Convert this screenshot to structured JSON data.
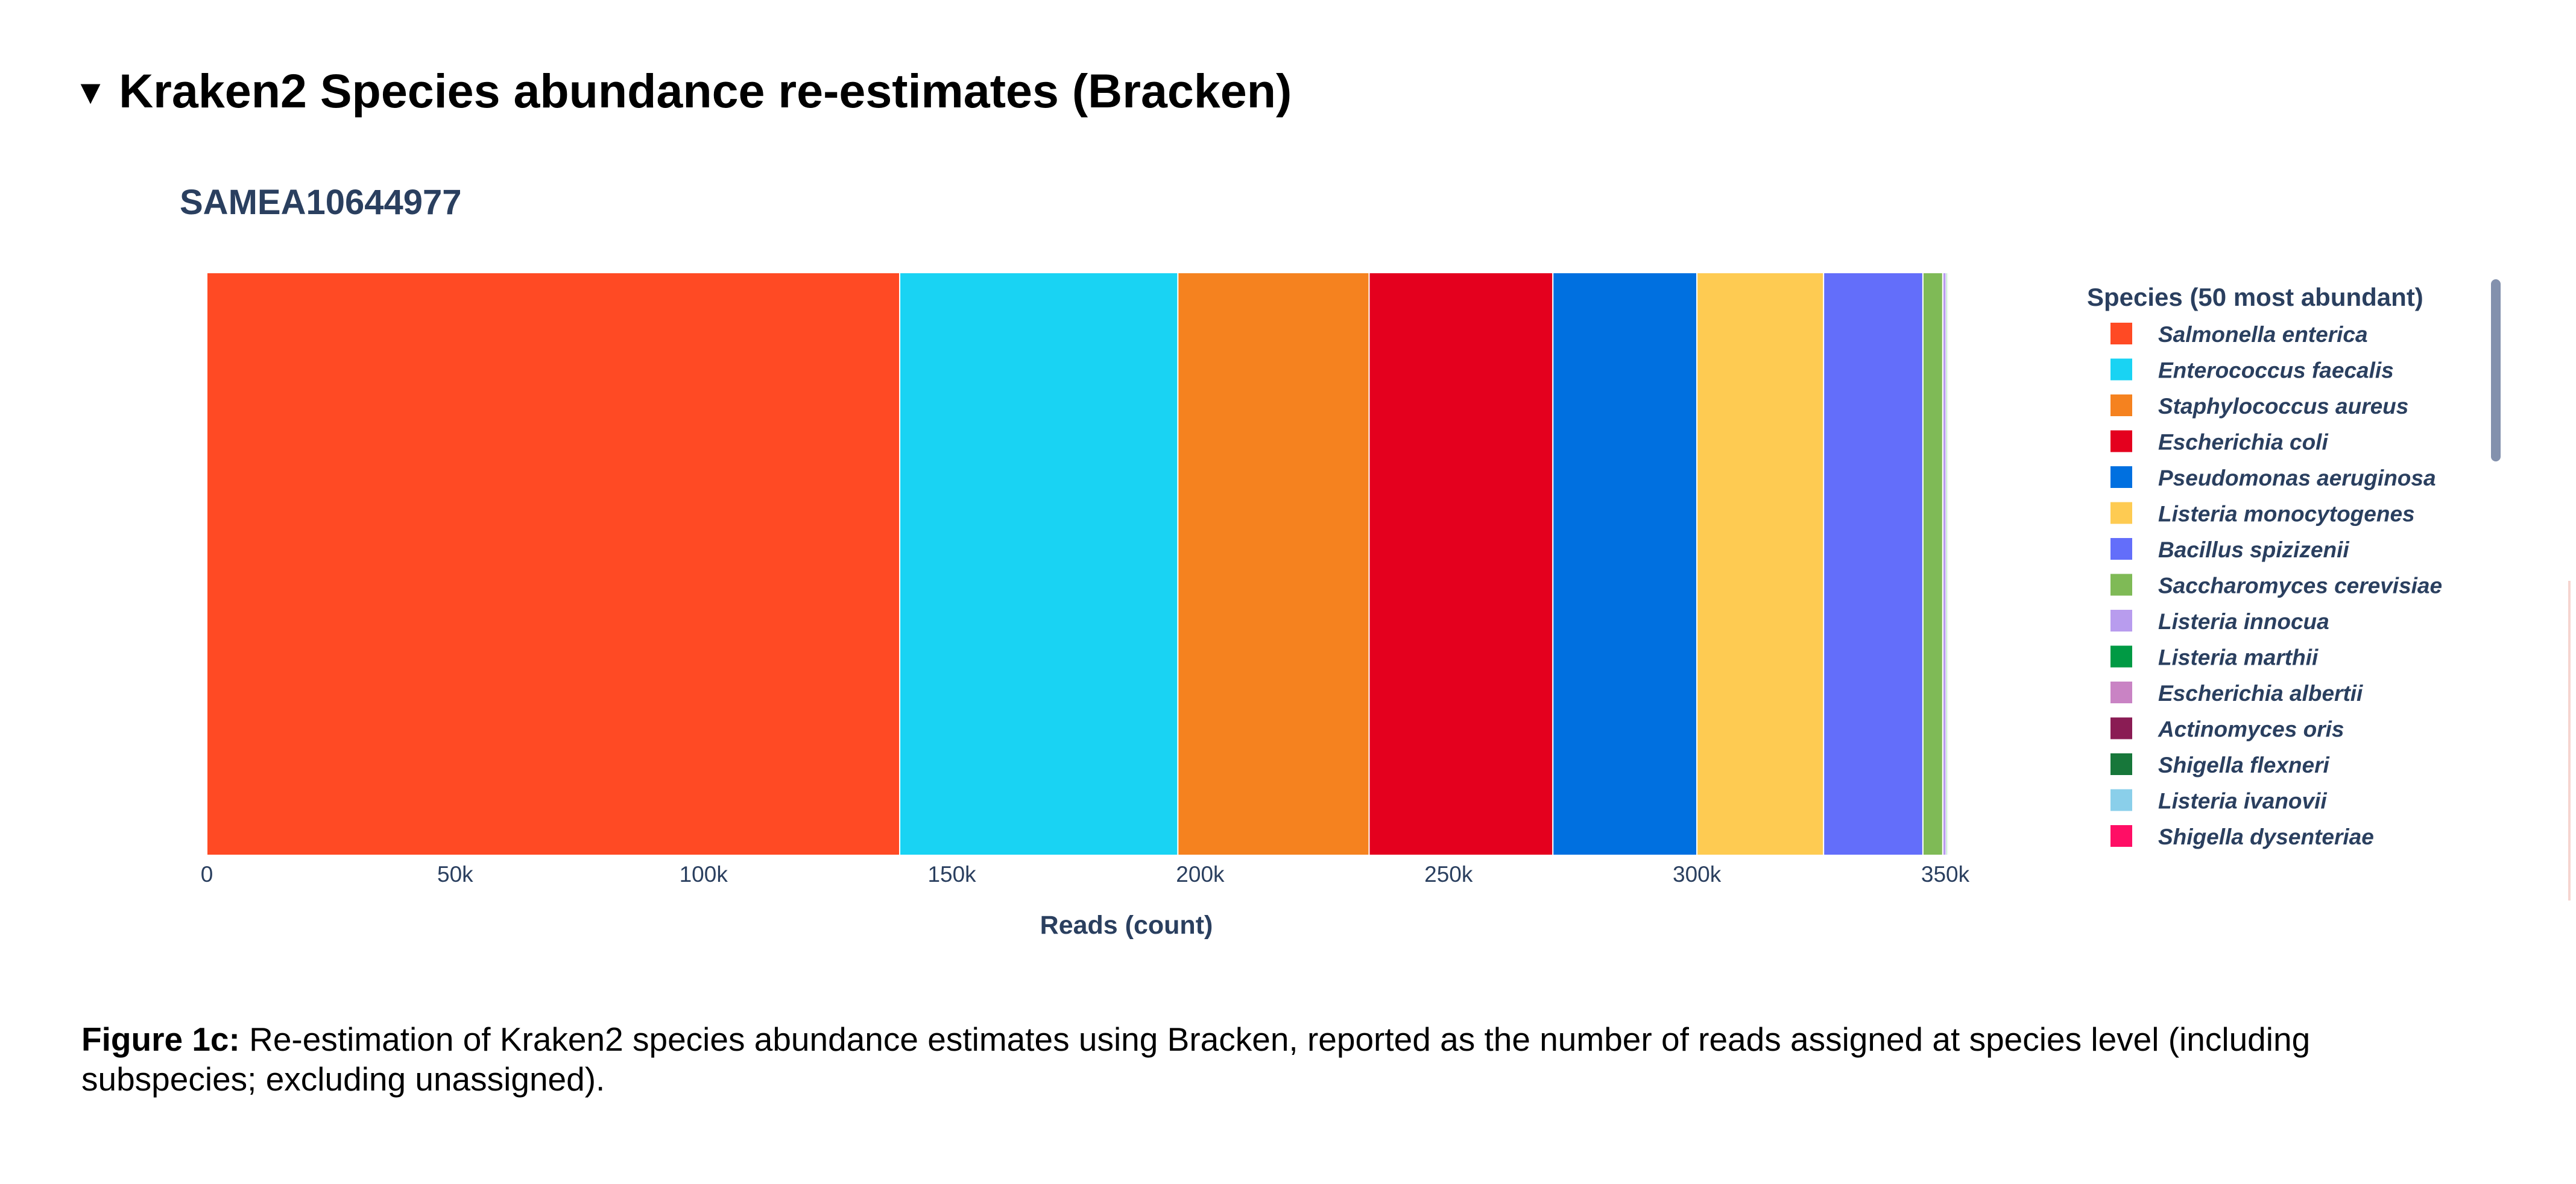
{
  "section": {
    "toggle_icon": "▾",
    "title": "Kraken2 Species abundance re-estimates (Bracken)"
  },
  "chart_data": {
    "type": "bar",
    "orientation": "horizontal",
    "barmode": "stack",
    "title": "SAMEA10644977",
    "xlabel": "Reads (count)",
    "ylabel": "",
    "xlim": [
      0,
      350000
    ],
    "xticks": [
      0,
      50000,
      100000,
      150000,
      200000,
      250000,
      300000,
      350000
    ],
    "xtick_labels": [
      "0",
      "50k",
      "100k",
      "150k",
      "200k",
      "250k",
      "300k",
      "350k"
    ],
    "categories": [
      "SAMEA10644977"
    ],
    "legend_title": "Species (50 most abundant)",
    "legend_position": "right",
    "series": [
      {
        "name": "Salmonella enterica",
        "values": [
          139500
        ],
        "color": "#FF4A24"
      },
      {
        "name": "Enterococcus faecalis",
        "values": [
          56000
        ],
        "color": "#19D3F3"
      },
      {
        "name": "Staphylococcus aureus",
        "values": [
          38500
        ],
        "color": "#F5821F"
      },
      {
        "name": "Escherichia coli",
        "values": [
          37000
        ],
        "color": "#E4001E"
      },
      {
        "name": "Pseudomonas aeruginosa",
        "values": [
          29000
        ],
        "color": "#0070E0"
      },
      {
        "name": "Listeria monocytogenes",
        "values": [
          25500
        ],
        "color": "#FECB52"
      },
      {
        "name": "Bacillus spizizenii",
        "values": [
          20000
        ],
        "color": "#636EFA"
      },
      {
        "name": "Saccharomyces cerevisiae",
        "values": [
          4000
        ],
        "color": "#7FBA56"
      },
      {
        "name": "Listeria innocua",
        "values": [
          700
        ],
        "color": "#B89CEE"
      },
      {
        "name": "Listeria marthii",
        "values": [
          300
        ],
        "color": "#009A44"
      },
      {
        "name": "Escherichia albertii",
        "values": [
          250
        ],
        "color": "#C983C4"
      },
      {
        "name": "Actinomyces oris",
        "values": [
          200
        ],
        "color": "#8A1C54"
      },
      {
        "name": "Shigella flexneri",
        "values": [
          150
        ],
        "color": "#17773A"
      },
      {
        "name": "Listeria ivanovii",
        "values": [
          100
        ],
        "color": "#8ACFEA"
      },
      {
        "name": "Shigella dysenteriae",
        "values": [
          100
        ],
        "color": "#FF0E65"
      }
    ]
  },
  "caption": {
    "label": "Figure 1c:",
    "text": " Re-estimation of Kraken2 species abundance estimates using Bracken, reported as the number of reads assigned at species level (including subspecies; excluding unassigned)."
  }
}
